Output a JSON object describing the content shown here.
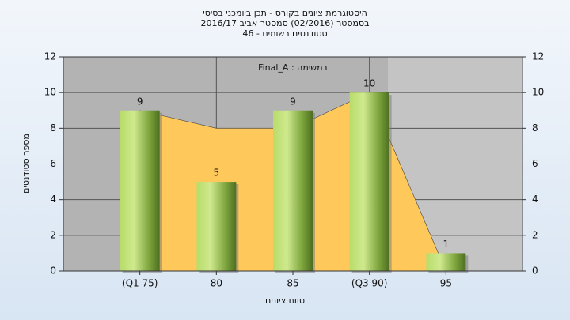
{
  "chart_data": {
    "type": "bar",
    "title": "היסטוגרמת ציונים בקורס - תכן ביומכני בסיסי",
    "subtitle": "בסמסטר  (02/2016)  סמסטר אביב 2016/17",
    "subtitle2": "סטודנטים רשומים - 46",
    "annotation": "במשימה : Final_A",
    "y_label": "מספר סטודנטים",
    "x_label": "טווח ציונים",
    "categories": [
      "(Q1 75)",
      "80",
      "85",
      "(Q3 90)",
      "95"
    ],
    "series": [
      {
        "type": "area",
        "color": "#ffc85a",
        "values": [
          9,
          8,
          8,
          10,
          0
        ]
      },
      {
        "type": "bar",
        "color": "#8fbf3a",
        "values": [
          9,
          5,
          9,
          10,
          1
        ]
      }
    ],
    "ylim": [
      0,
      12
    ],
    "yticks": [
      0,
      2,
      4,
      6,
      8,
      10,
      12
    ],
    "y2lim": [
      0,
      12
    ],
    "y2ticks": [
      0,
      2,
      4,
      6,
      8,
      10,
      12
    ],
    "grid": true
  }
}
